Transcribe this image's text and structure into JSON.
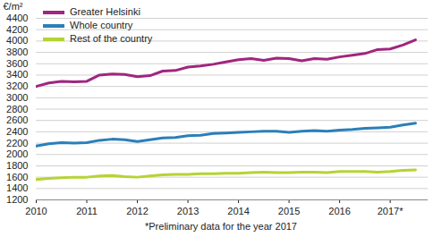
{
  "chart_data": {
    "type": "line",
    "ylabel": "€/m²",
    "caption": "*Preliminary data for the year 2017",
    "x": [
      2010,
      2010.25,
      2010.5,
      2010.75,
      2011,
      2011.25,
      2011.5,
      2011.75,
      2012,
      2012.25,
      2012.5,
      2012.75,
      2013,
      2013.25,
      2013.5,
      2013.75,
      2014,
      2014.25,
      2014.5,
      2014.75,
      2015,
      2015.25,
      2015.5,
      2015.75,
      2016,
      2016.25,
      2016.5,
      2016.75,
      2017,
      2017.25,
      2017.5
    ],
    "series": [
      {
        "name": "Greater Helsinki",
        "color": "#a0267e",
        "values": [
          3200,
          3260,
          3290,
          3280,
          3290,
          3400,
          3420,
          3410,
          3370,
          3390,
          3470,
          3480,
          3540,
          3560,
          3590,
          3630,
          3670,
          3690,
          3660,
          3700,
          3690,
          3650,
          3690,
          3680,
          3720,
          3750,
          3780,
          3850,
          3860,
          3930,
          4020
        ]
      },
      {
        "name": "Whole country",
        "color": "#2a7fb8",
        "values": [
          2150,
          2190,
          2210,
          2200,
          2210,
          2250,
          2270,
          2260,
          2230,
          2260,
          2290,
          2300,
          2330,
          2340,
          2370,
          2380,
          2390,
          2400,
          2410,
          2410,
          2390,
          2410,
          2420,
          2410,
          2430,
          2440,
          2460,
          2470,
          2480,
          2520,
          2550
        ]
      },
      {
        "name": "Rest of the country",
        "color": "#b5d334",
        "values": [
          1560,
          1580,
          1590,
          1600,
          1600,
          1620,
          1630,
          1610,
          1600,
          1620,
          1640,
          1650,
          1650,
          1660,
          1660,
          1670,
          1670,
          1680,
          1690,
          1680,
          1680,
          1690,
          1690,
          1680,
          1700,
          1700,
          1700,
          1690,
          1700,
          1720,
          1730
        ]
      }
    ],
    "xlim": [
      2010,
      2017.75
    ],
    "xticks": [
      2010,
      2011,
      2012,
      2013,
      2014,
      2015,
      2016,
      {
        "value": 2017,
        "label": "2017*"
      }
    ],
    "ylim": [
      1200,
      4400
    ],
    "yticks": [
      1200,
      1400,
      1600,
      1800,
      2000,
      2200,
      2400,
      2600,
      2800,
      3000,
      3200,
      3400,
      3600,
      3800,
      4000,
      4200,
      4400
    ],
    "grid": true,
    "legend": "top-left"
  }
}
